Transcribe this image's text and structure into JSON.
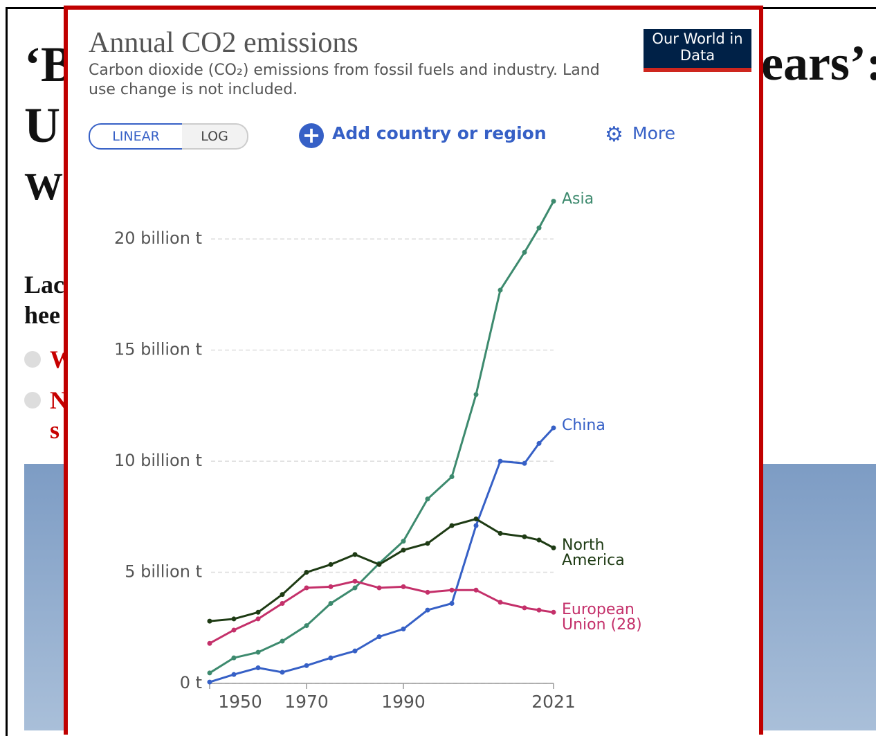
{
  "article": {
    "headline": [
      "‘B",
      "ears’:",
      "U",
      "W"
    ],
    "lede": [
      "Lac",
      "hee"
    ],
    "links": [
      "W",
      "N",
      "s"
    ]
  },
  "controls": {
    "linear": "LINEAR",
    "log": "LOG",
    "add": "Add country or region",
    "more": "More",
    "logo": "Our World in Data"
  },
  "chart_data": {
    "type": "line",
    "title": "Annual CO2 emissions",
    "subtitle": "Carbon dioxide (CO₂) emissions from fossil fuels and industry. Land use change is not included.",
    "x": [
      1950,
      1955,
      1960,
      1965,
      1970,
      1975,
      1980,
      1985,
      1990,
      1995,
      2000,
      2005,
      2010,
      2015,
      2018,
      2021
    ],
    "series": [
      {
        "name": "Asia",
        "color": "#3d8a6e",
        "values": [
          0.47,
          1.15,
          1.4,
          1.9,
          2.6,
          3.6,
          4.3,
          5.4,
          6.4,
          8.3,
          9.3,
          13.0,
          17.7,
          19.4,
          20.5,
          21.7
        ]
      },
      {
        "name": "China",
        "color": "#3660c6",
        "values": [
          0.06,
          0.4,
          0.7,
          0.5,
          0.8,
          1.15,
          1.46,
          2.1,
          2.45,
          3.3,
          3.6,
          7.1,
          10.0,
          9.9,
          10.8,
          11.5
        ]
      },
      {
        "name": "North America",
        "color": "#1e3b14",
        "values": [
          2.8,
          2.9,
          3.2,
          4.0,
          5.0,
          5.35,
          5.8,
          5.35,
          6.0,
          6.3,
          7.1,
          7.4,
          6.75,
          6.6,
          6.45,
          6.1
        ]
      },
      {
        "name": "European Union (28)",
        "color": "#c4306a",
        "values": [
          1.8,
          2.4,
          2.9,
          3.6,
          4.3,
          4.35,
          4.6,
          4.3,
          4.35,
          4.1,
          4.2,
          4.2,
          3.65,
          3.4,
          3.3,
          3.2
        ]
      }
    ],
    "xlim": [
      1950,
      2021
    ],
    "xticks": [
      1950,
      1970,
      1990,
      2021
    ],
    "ylim": [
      0,
      22
    ],
    "yticks": [
      {
        "value": 0,
        "label": "0 t"
      },
      {
        "value": 5,
        "label": "5 billion t"
      },
      {
        "value": 10,
        "label": "10 billion t"
      },
      {
        "value": 15,
        "label": "15 billion t"
      },
      {
        "value": 20,
        "label": "20 billion t"
      }
    ],
    "grid": true
  }
}
